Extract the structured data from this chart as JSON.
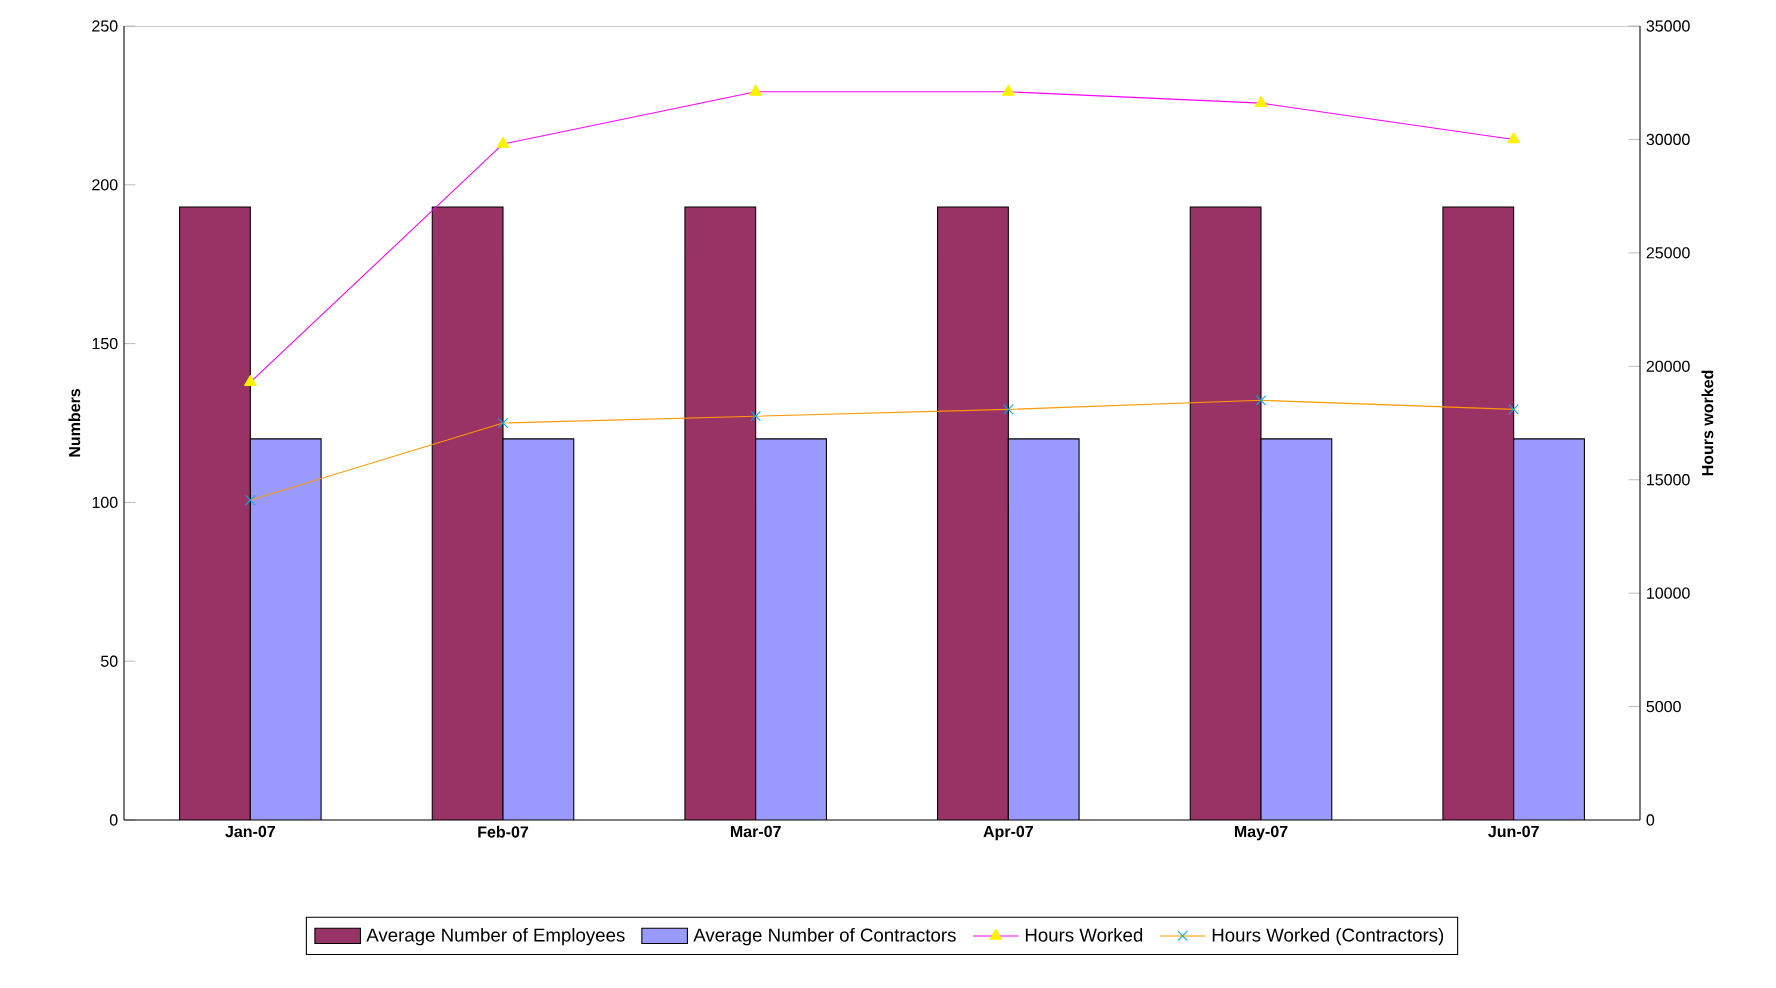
{
  "chart_data": {
    "type": "bar",
    "ylabel": "Numbers",
    "y2label": "Hours worked",
    "categories": [
      "Jan-07",
      "Feb-07",
      "Mar-07",
      "Apr-07",
      "May-07",
      "Jun-07"
    ],
    "series": [
      {
        "name": "Average Number of Employees",
        "color": "#993366",
        "values": [
          193,
          193,
          193,
          193,
          193,
          193
        ]
      },
      {
        "name": "Average Number of Contractors",
        "color": "#9999ff",
        "values": [
          120,
          120,
          120,
          120,
          120,
          120
        ]
      },
      {
        "name": "Hours Worked",
        "type": "line",
        "axis": "y2",
        "marker": "triangle",
        "color": "#ff00ff",
        "values": [
          19300,
          29800,
          32100,
          32100,
          31600,
          30000
        ]
      },
      {
        "name": "Hours Worked (Contractors)",
        "type": "line",
        "axis": "y2",
        "marker": "cross",
        "color": "#ff9900",
        "values": [
          14100,
          17500,
          17800,
          18100,
          18500,
          18100
        ]
      }
    ],
    "ylim": [
      0,
      250
    ],
    "yticks": [
      0,
      50,
      100,
      150,
      200,
      250
    ],
    "y2lim": [
      0,
      35000
    ],
    "y2ticks": [
      0,
      5000,
      10000,
      15000,
      20000,
      25000,
      30000,
      35000
    ],
    "legend": "bottom"
  }
}
